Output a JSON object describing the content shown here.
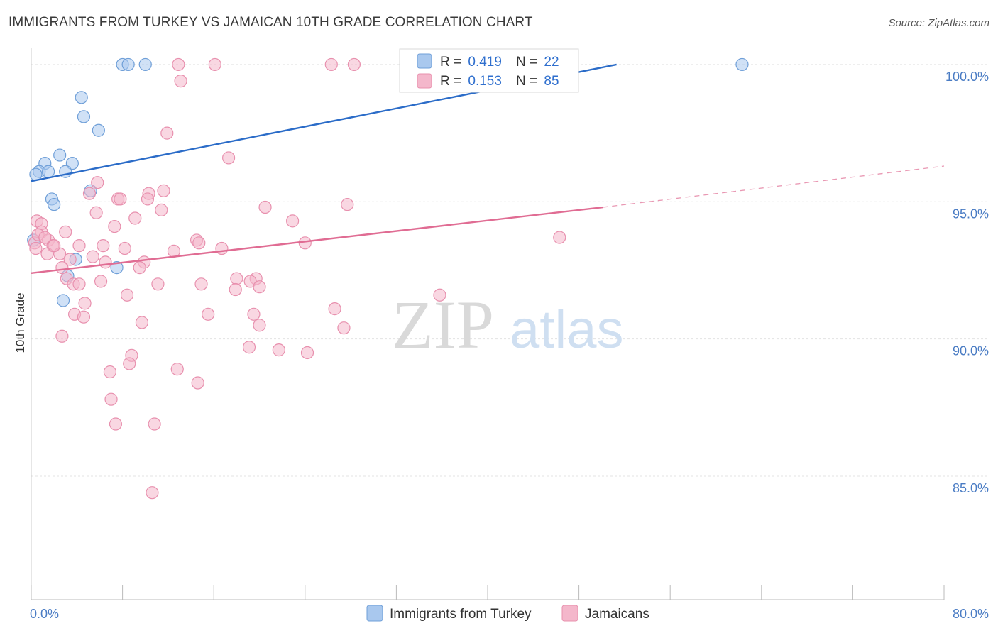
{
  "title": "IMMIGRANTS FROM TURKEY VS JAMAICAN 10TH GRADE CORRELATION CHART",
  "source": "Source: ZipAtlas.com",
  "watermark": {
    "zip": "ZIP",
    "atlas": "atlas"
  },
  "colors": {
    "blue_fill": "#a9c8ee",
    "blue_stroke": "#6f9fd8",
    "blue_line": "#2b6cc8",
    "pink_fill": "#f4b7cb",
    "pink_stroke": "#e890ae",
    "pink_line": "#e06c93",
    "grid": "#e3e3e3",
    "tick_text": "#4a7cc4"
  },
  "legend": {
    "rows": [
      {
        "r_label": "R = ",
        "r_value": "0.419",
        "n_label": "N = ",
        "n_value": "22",
        "swatch": "blue"
      },
      {
        "r_label": "R = ",
        "r_value": "0.153",
        "n_label": "N = ",
        "n_value": "85",
        "swatch": "pink"
      }
    ]
  },
  "chart_data": {
    "type": "scatter",
    "title": "IMMIGRANTS FROM TURKEY VS JAMAICAN 10TH GRADE CORRELATION CHART",
    "xlabel": "",
    "ylabel": "10th Grade",
    "xlim": [
      0,
      80
    ],
    "ylim": [
      80.5,
      100.8
    ],
    "x_tick_labels": [
      {
        "value": 0,
        "label": "0.0%"
      },
      {
        "value": 80,
        "label": "80.0%"
      }
    ],
    "y_tick_labels": [
      {
        "value": 100,
        "label": "100.0%"
      },
      {
        "value": 95,
        "label": "95.0%"
      },
      {
        "value": 90,
        "label": "90.0%"
      },
      {
        "value": 85,
        "label": "85.0%"
      }
    ],
    "x_minor_ticks": [
      0,
      8,
      16,
      24,
      32,
      40,
      48,
      56,
      64,
      72,
      80
    ],
    "grid": true,
    "legend_placement": "top-center",
    "series": [
      {
        "name": "Immigrants from Turkey",
        "color": "blue",
        "trend": {
          "x0": 0,
          "y0": 95.75,
          "x1": 51.3,
          "y1": 100.0,
          "dashed_from": null
        },
        "points": [
          [
            8.0,
            100.0
          ],
          [
            8.5,
            100.0
          ],
          [
            10.0,
            100.0
          ],
          [
            62.3,
            100.0
          ],
          [
            4.4,
            98.8
          ],
          [
            4.6,
            98.1
          ],
          [
            5.9,
            97.6
          ],
          [
            2.5,
            96.7
          ],
          [
            1.2,
            96.4
          ],
          [
            3.6,
            96.4
          ],
          [
            0.7,
            96.1
          ],
          [
            1.5,
            96.1
          ],
          [
            3.0,
            96.1
          ],
          [
            0.4,
            96.0
          ],
          [
            5.2,
            95.4
          ],
          [
            1.8,
            95.1
          ],
          [
            2.0,
            94.9
          ],
          [
            3.9,
            92.9
          ],
          [
            7.5,
            92.6
          ],
          [
            3.2,
            92.3
          ],
          [
            2.8,
            91.4
          ],
          [
            0.2,
            93.6
          ]
        ]
      },
      {
        "name": "Jamaicans",
        "color": "pink",
        "trend": {
          "x0": 0,
          "y0": 92.4,
          "x1": 50.1,
          "y1": 94.8,
          "dashed_to_x": 80,
          "dashed_to_y": 96.3
        },
        "points": [
          [
            12.9,
            100.0
          ],
          [
            16.1,
            100.0
          ],
          [
            26.3,
            100.0
          ],
          [
            28.3,
            100.0
          ],
          [
            43.2,
            100.0
          ],
          [
            13.1,
            99.4
          ],
          [
            11.9,
            97.5
          ],
          [
            17.3,
            96.6
          ],
          [
            5.8,
            95.7
          ],
          [
            5.1,
            95.3
          ],
          [
            10.3,
            95.3
          ],
          [
            11.6,
            95.4
          ],
          [
            7.6,
            95.1
          ],
          [
            7.8,
            95.1
          ],
          [
            10.2,
            95.1
          ],
          [
            11.4,
            94.7
          ],
          [
            20.5,
            94.8
          ],
          [
            27.7,
            94.9
          ],
          [
            5.7,
            94.6
          ],
          [
            9.1,
            94.4
          ],
          [
            22.9,
            94.3
          ],
          [
            0.5,
            94.3
          ],
          [
            0.9,
            94.2
          ],
          [
            7.3,
            94.1
          ],
          [
            0.9,
            93.9
          ],
          [
            3.0,
            93.9
          ],
          [
            1.5,
            93.6
          ],
          [
            14.5,
            93.6
          ],
          [
            14.7,
            93.5
          ],
          [
            24.0,
            93.5
          ],
          [
            46.3,
            93.7
          ],
          [
            1.9,
            93.4
          ],
          [
            4.2,
            93.4
          ],
          [
            6.3,
            93.4
          ],
          [
            8.2,
            93.3
          ],
          [
            12.5,
            93.2
          ],
          [
            16.7,
            93.3
          ],
          [
            2.5,
            93.1
          ],
          [
            1.4,
            93.1
          ],
          [
            5.4,
            93.0
          ],
          [
            3.4,
            92.9
          ],
          [
            9.9,
            92.8
          ],
          [
            2.7,
            92.6
          ],
          [
            6.5,
            92.8
          ],
          [
            9.5,
            92.6
          ],
          [
            3.1,
            92.2
          ],
          [
            18.0,
            92.2
          ],
          [
            19.7,
            92.2
          ],
          [
            3.7,
            92.0
          ],
          [
            4.2,
            92.0
          ],
          [
            6.1,
            92.1
          ],
          [
            11.1,
            92.0
          ],
          [
            14.9,
            92.0
          ],
          [
            19.2,
            92.1
          ],
          [
            17.9,
            91.8
          ],
          [
            20.0,
            91.9
          ],
          [
            35.8,
            91.6
          ],
          [
            8.4,
            91.6
          ],
          [
            4.7,
            91.3
          ],
          [
            26.6,
            91.1
          ],
          [
            3.8,
            90.9
          ],
          [
            4.6,
            90.8
          ],
          [
            15.5,
            90.9
          ],
          [
            19.5,
            90.9
          ],
          [
            9.7,
            90.6
          ],
          [
            20.0,
            90.5
          ],
          [
            27.4,
            90.4
          ],
          [
            2.7,
            90.1
          ],
          [
            19.1,
            89.7
          ],
          [
            21.7,
            89.6
          ],
          [
            24.2,
            89.5
          ],
          [
            8.8,
            89.4
          ],
          [
            8.6,
            89.1
          ],
          [
            12.8,
            88.9
          ],
          [
            6.9,
            88.8
          ],
          [
            14.6,
            88.4
          ],
          [
            7.0,
            87.8
          ],
          [
            7.4,
            86.9
          ],
          [
            10.8,
            86.9
          ],
          [
            10.6,
            84.4
          ],
          [
            0.3,
            93.5
          ],
          [
            0.6,
            93.8
          ],
          [
            1.2,
            93.7
          ],
          [
            2.0,
            93.4
          ],
          [
            0.4,
            93.3
          ]
        ]
      }
    ]
  },
  "bottom_legend": [
    {
      "label": "Immigrants from Turkey",
      "swatch": "blue"
    },
    {
      "label": "Jamaicans",
      "swatch": "pink"
    }
  ]
}
